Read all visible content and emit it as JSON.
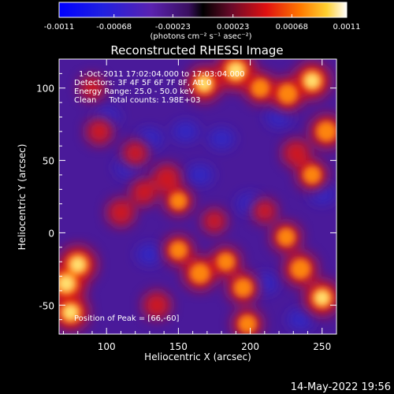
{
  "colorbar": {
    "ticks": [
      "-0.0011",
      "-0.00068",
      "-0.00023",
      "0.00023",
      "0.00068",
      "0.0011"
    ],
    "tick_values": [
      -0.0011,
      -0.00068,
      -0.00023,
      0.00023,
      0.00068,
      0.0011
    ],
    "units": "(photons cm⁻² s⁻¹ asec⁻²)",
    "range": [
      -0.0011,
      0.0011
    ],
    "colormap": "blue-purple-red-yellow-white"
  },
  "chart_data": {
    "type": "heatmap",
    "title": "Reconstructed RHESSI Image",
    "xlabel": "Heliocentric X (arcsec)",
    "ylabel": "Heliocentric Y (arcsec)",
    "xlim": [
      67,
      260
    ],
    "ylim": [
      -70,
      120
    ],
    "xticks": [
      100,
      150,
      200,
      250
    ],
    "xtick_labels": [
      "100",
      "150",
      "200",
      "250"
    ],
    "yticks": [
      -50,
      0,
      50,
      100
    ],
    "ytick_labels": [
      "-50",
      "0",
      "50",
      "100"
    ],
    "annotations": [
      "1-Oct-2011 17:02:04.000 to 17:03:04.000",
      "Detectors: 3F 4F 5F 6F 7F 8F, Att 0",
      "Energy Range: 25.0 - 50.0 keV",
      "Clean     Total counts: 1.98E+03"
    ],
    "peak_label": "Position of Peak = [66,-60]",
    "peak_position": [
      66,
      -60
    ],
    "hotspots": [
      {
        "x": 72,
        "y": -35,
        "level": 1.0
      },
      {
        "x": 80,
        "y": -22,
        "level": 0.9
      },
      {
        "x": 75,
        "y": -55,
        "level": 0.85
      },
      {
        "x": 190,
        "y": 112,
        "level": 0.95
      },
      {
        "x": 243,
        "y": 105,
        "level": 0.85
      },
      {
        "x": 226,
        "y": 96,
        "level": 0.7
      },
      {
        "x": 207,
        "y": 100,
        "level": 0.6
      },
      {
        "x": 168,
        "y": 103,
        "level": 0.8
      },
      {
        "x": 253,
        "y": 70,
        "level": 0.7
      },
      {
        "x": 243,
        "y": 40,
        "level": 0.55
      },
      {
        "x": 232,
        "y": 55,
        "level": 0.45
      },
      {
        "x": 150,
        "y": 22,
        "level": 0.5
      },
      {
        "x": 142,
        "y": 38,
        "level": 0.45
      },
      {
        "x": 126,
        "y": 28,
        "level": 0.4
      },
      {
        "x": 110,
        "y": 14,
        "level": 0.45
      },
      {
        "x": 150,
        "y": -12,
        "level": 0.55
      },
      {
        "x": 165,
        "y": -28,
        "level": 0.7
      },
      {
        "x": 183,
        "y": -20,
        "level": 0.55
      },
      {
        "x": 195,
        "y": -38,
        "level": 0.6
      },
      {
        "x": 225,
        "y": -3,
        "level": 0.55
      },
      {
        "x": 235,
        "y": -25,
        "level": 0.7
      },
      {
        "x": 250,
        "y": -45,
        "level": 0.8
      },
      {
        "x": 198,
        "y": -63,
        "level": 0.55
      },
      {
        "x": 135,
        "y": -50,
        "level": 0.45
      },
      {
        "x": 95,
        "y": 70,
        "level": 0.4
      },
      {
        "x": 120,
        "y": 55,
        "level": 0.35
      },
      {
        "x": 90,
        "y": 100,
        "level": 0.35
      },
      {
        "x": 210,
        "y": 15,
        "level": 0.3
      },
      {
        "x": 175,
        "y": 8,
        "level": 0.3
      }
    ],
    "coldspots": [
      {
        "x": 200,
        "y": 20,
        "level": -0.5
      },
      {
        "x": 250,
        "y": 27,
        "level": -0.6
      },
      {
        "x": 115,
        "y": 45,
        "level": -0.45
      },
      {
        "x": 130,
        "y": 65,
        "level": -0.4
      },
      {
        "x": 180,
        "y": 65,
        "level": -0.35
      },
      {
        "x": 155,
        "y": 70,
        "level": -0.35
      },
      {
        "x": 210,
        "y": -35,
        "level": -0.4
      },
      {
        "x": 130,
        "y": -15,
        "level": -0.4
      },
      {
        "x": 220,
        "y": 80,
        "level": -0.3
      },
      {
        "x": 100,
        "y": 80,
        "level": -0.3
      },
      {
        "x": 165,
        "y": 40,
        "level": -0.3
      },
      {
        "x": 235,
        "y": -60,
        "level": -0.3
      }
    ]
  },
  "footer": {
    "date": "14-May-2022 19:56"
  }
}
